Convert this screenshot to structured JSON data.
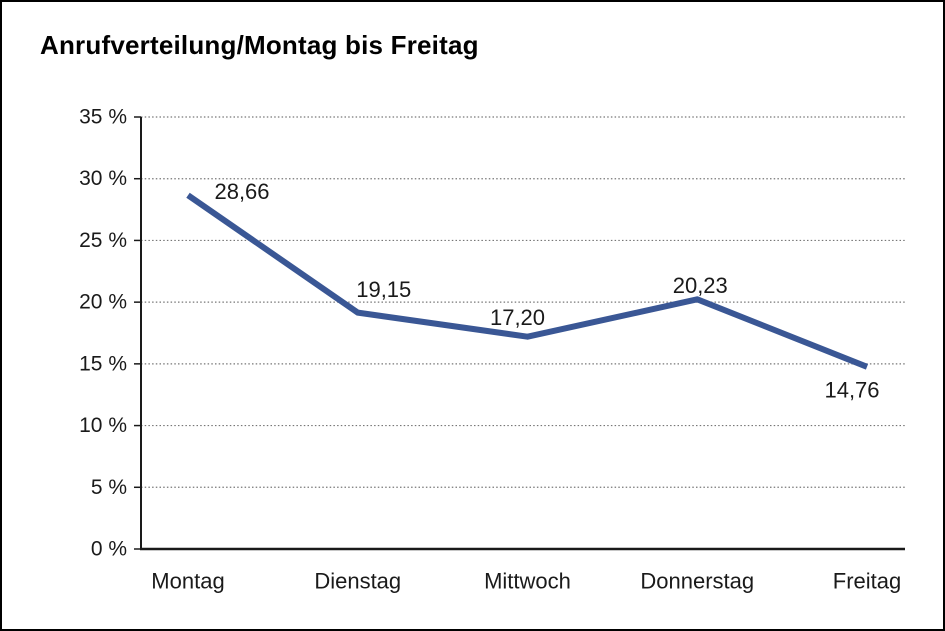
{
  "chart_data": {
    "type": "line",
    "title": "Anrufverteilung/Montag bis Freitag",
    "categories": [
      "Montag",
      "Dienstag",
      "Mittwoch",
      "Donnerstag",
      "Freitag"
    ],
    "series": [
      {
        "name": "Anrufverteilung",
        "values": [
          28.66,
          19.15,
          17.2,
          20.23,
          14.76
        ]
      }
    ],
    "data_labels": [
      "28,66",
      "19,15",
      "17,20",
      "20,23",
      "14,76"
    ],
    "xlabel": "",
    "ylabel": "",
    "ylim": [
      0,
      35
    ],
    "ytick_step": 5,
    "ytick_labels": [
      "0 %",
      "5 %",
      "10 %",
      "15 %",
      "20 %",
      "25 %",
      "30 %",
      "35 %"
    ],
    "grid": "horizontal-dotted",
    "legend": "none",
    "colors": {
      "line": "#3A5795",
      "axis": "#1a1a1a",
      "gridline": "#777777",
      "text": "#1a1a1a",
      "background": "#ffffff",
      "frame_border": "#000000"
    }
  }
}
